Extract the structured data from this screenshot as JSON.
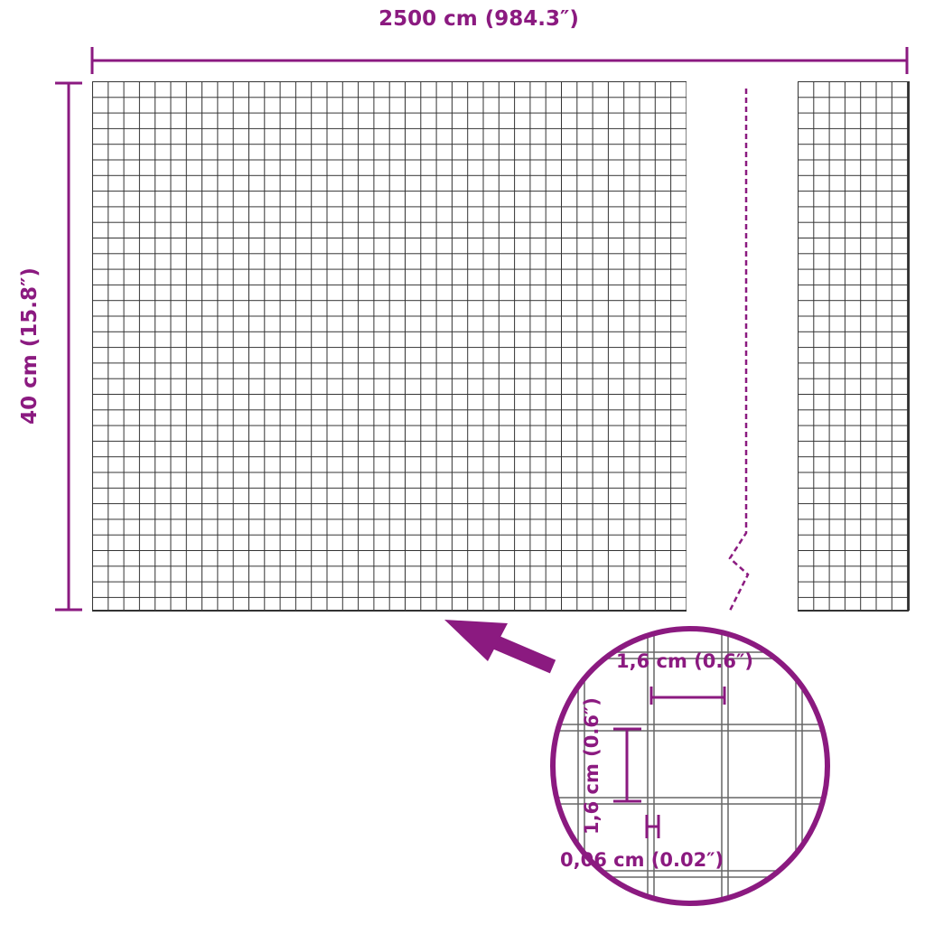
{
  "colors": {
    "accent": "#8b1a80",
    "mesh": "#333333"
  },
  "dimensions": {
    "width_label": "2500 cm (984.3″)",
    "height_label": "40 cm (15.8″)"
  },
  "detail": {
    "mesh_width_label": "1,6 cm (0.6″)",
    "mesh_height_label": "1,6 cm (0.6″)",
    "wire_thickness_label": "0,06 cm (0.02″)"
  }
}
